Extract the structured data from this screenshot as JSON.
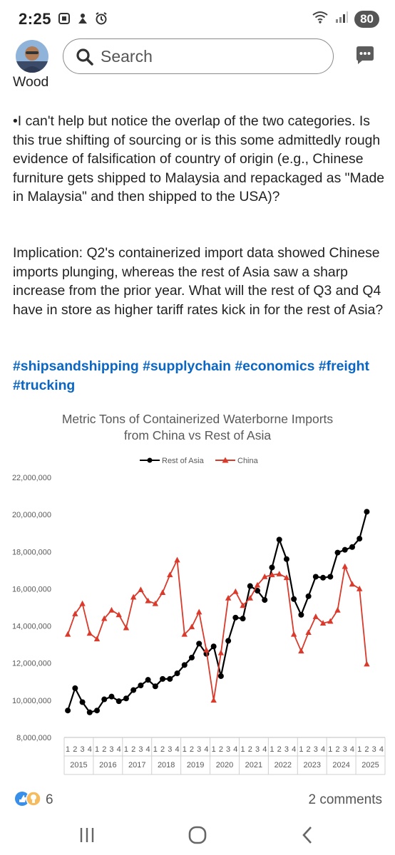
{
  "status_bar": {
    "time": "2:25",
    "battery": "80"
  },
  "header": {
    "search_placeholder": "Search"
  },
  "post": {
    "cut_line": "Wood",
    "para1": "•I can't help but notice the overlap of the two categories. Is this true shifting of sourcing or is this some admittedly rough evidence of falsification of country of origin (e.g., Chinese furniture gets shipped to Malaysia and repackaged as \"Made in Malaysia\" and then shipped to the USA)?",
    "para2": "Implication: Q2's containerized import data showed Chinese imports plunging, whereas the rest of Asia saw a sharp increase from the prior year. What will the rest of Q3 and Q4 have in store as higher tariff rates kick in for the rest of Asia?",
    "hashtags": "#shipsandshipping #supplychain #economics #freight #trucking"
  },
  "chart_data": {
    "type": "line",
    "title": "Metric Tons of Containerized Waterborne Imports from China vs Rest of Asia",
    "title_line1": "Metric Tons of Containerized Waterborne Imports",
    "title_line2": "from China vs Rest of Asia",
    "xlabel": "",
    "ylabel": "",
    "ylim": [
      8000000,
      22000000
    ],
    "y_ticks": [
      "8,000,000",
      "10,000,000",
      "12,000,000",
      "14,000,000",
      "16,000,000",
      "18,000,000",
      "20,000,000",
      "22,000,000"
    ],
    "years": [
      "2015",
      "2016",
      "2017",
      "2018",
      "2019",
      "2020",
      "2021",
      "2022",
      "2023",
      "2024",
      "2025"
    ],
    "quarter_labels": [
      "1",
      "2",
      "3",
      "4"
    ],
    "legend_position": "top",
    "grid": false,
    "series": [
      {
        "name": "Rest of Asia",
        "color": "#000000",
        "marker": "circle",
        "values": [
          9450000,
          10650000,
          9900000,
          9350000,
          9450000,
          10050000,
          10200000,
          9950000,
          10100000,
          10550000,
          10800000,
          11100000,
          10750000,
          11150000,
          11150000,
          11450000,
          11900000,
          12300000,
          13050000,
          12500000,
          12900000,
          11300000,
          13200000,
          14450000,
          14400000,
          16150000,
          15900000,
          15400000,
          17150000,
          18650000,
          17600000,
          15450000,
          14600000,
          15600000,
          16650000,
          16600000,
          16650000,
          17950000,
          18100000,
          18250000,
          18700000,
          20150000
        ]
      },
      {
        "name": "China",
        "color": "#d93a2b",
        "marker": "triangle",
        "values": [
          13550000,
          14650000,
          15200000,
          13600000,
          13300000,
          14400000,
          14850000,
          14600000,
          13900000,
          15550000,
          15950000,
          15350000,
          15200000,
          15800000,
          16750000,
          17550000,
          13550000,
          13950000,
          14750000,
          12700000,
          10000000,
          12550000,
          15500000,
          15850000,
          15100000,
          15500000,
          16200000,
          16650000,
          16750000,
          16800000,
          16600000,
          13550000,
          12650000,
          13650000,
          14500000,
          14150000,
          14250000,
          14850000,
          17200000,
          16250000,
          16000000,
          11950000
        ]
      }
    ]
  },
  "social": {
    "reaction_count": "6",
    "comments": "2 comments"
  },
  "colors": {
    "link": "#0a66c2",
    "china": "#d93a2b",
    "rest_of_asia": "#000000"
  }
}
